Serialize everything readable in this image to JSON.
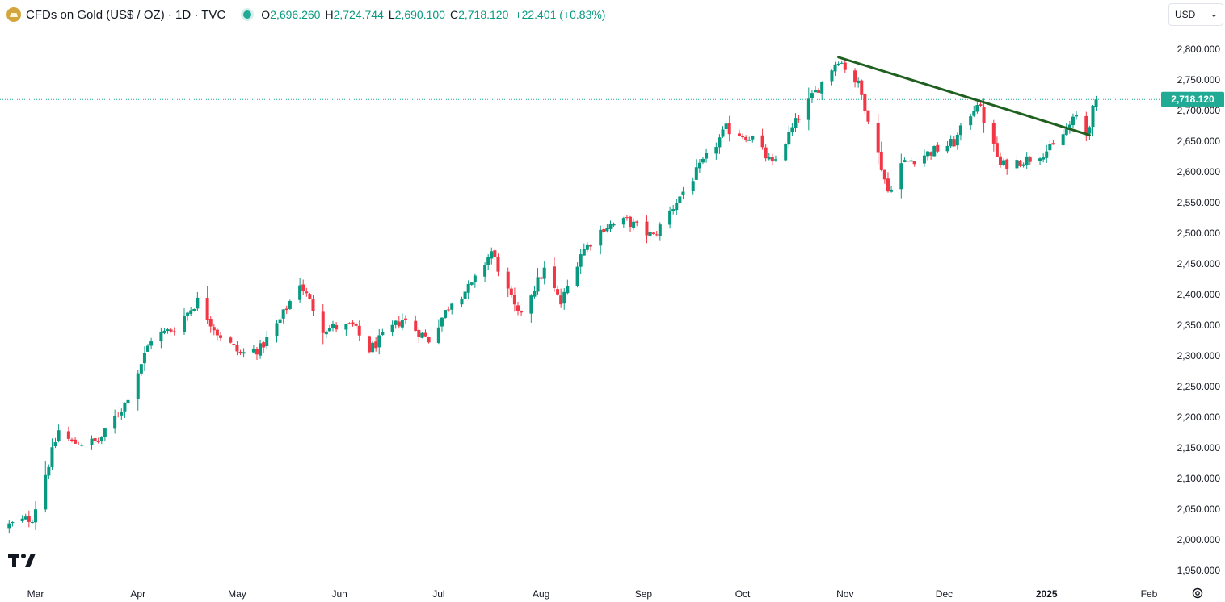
{
  "header": {
    "symbol_title": "CFDs on Gold (US$ / OZ) · 1D · TVC",
    "open_label": "O",
    "open_value": "2,696.260",
    "high_label": "H",
    "high_value": "2,724.744",
    "low_label": "L",
    "low_value": "2,690.100",
    "close_label": "C",
    "close_value": "2,718.120",
    "change": "+22.401 (+0.83%)",
    "market_status_color": "#22ab94"
  },
  "currency_selector": {
    "value": "USD"
  },
  "last_price_label": "2,718.120",
  "colors": {
    "up": "#089981",
    "down": "#f23645",
    "trendline": "#1f5f1f",
    "price_line": "#22ab94"
  },
  "icons": {
    "logo": "tradingview-logo",
    "settings": "settings-icon",
    "symbol": "gold-icon",
    "dropdown": "chevron-down-icon"
  },
  "chart_data": {
    "type": "candlestick",
    "title": "CFDs on Gold (US$ / OZ) · 1D · TVC",
    "ylim": [
      1950,
      2800
    ],
    "y_ticks": [
      "2,800.000",
      "2,750.000",
      "2,700.000",
      "2,650.000",
      "2,600.000",
      "2,550.000",
      "2,500.000",
      "2,450.000",
      "2,400.000",
      "2,350.000",
      "2,300.000",
      "2,250.000",
      "2,200.000",
      "2,150.000",
      "2,100.000",
      "2,050.000",
      "2,000.000",
      "1,950.000"
    ],
    "y_tick_values": [
      2800,
      2750,
      2700,
      2650,
      2600,
      2550,
      2500,
      2450,
      2400,
      2350,
      2300,
      2250,
      2200,
      2150,
      2100,
      2050,
      2000,
      1950
    ],
    "x_ticks": [
      "Mar",
      "Apr",
      "May",
      "Jun",
      "Jul",
      "Aug",
      "Sep",
      "Oct",
      "Nov",
      "Dec",
      "2025",
      "Feb"
    ],
    "x_tick_dates": [
      "2024-03-01",
      "2024-04-01",
      "2024-05-01",
      "2024-06-01",
      "2024-07-01",
      "2024-08-01",
      "2024-09-01",
      "2024-10-01",
      "2024-11-01",
      "2024-12-01",
      "2025-01-01",
      "2025-02-01"
    ],
    "x_range": [
      "2024-02-22",
      "2025-02-15"
    ],
    "last_price": 2718.12,
    "waypoints": [
      [
        "2024-02-22",
        2024
      ],
      [
        "2024-02-29",
        2036
      ],
      [
        "2024-03-08",
        2178
      ],
      [
        "2024-03-12",
        2158
      ],
      [
        "2024-03-20",
        2160
      ],
      [
        "2024-03-28",
        2222
      ],
      [
        "2024-04-05",
        2328
      ],
      [
        "2024-04-12",
        2345
      ],
      [
        "2024-04-19",
        2390
      ],
      [
        "2024-04-25",
        2338
      ],
      [
        "2024-05-02",
        2303
      ],
      [
        "2024-05-08",
        2312
      ],
      [
        "2024-05-14",
        2358
      ],
      [
        "2024-05-20",
        2420
      ],
      [
        "2024-05-27",
        2345
      ],
      [
        "2024-06-05",
        2348
      ],
      [
        "2024-06-10",
        2310
      ],
      [
        "2024-06-20",
        2360
      ],
      [
        "2024-06-28",
        2326
      ],
      [
        "2024-07-05",
        2390
      ],
      [
        "2024-07-11",
        2414
      ],
      [
        "2024-07-17",
        2470
      ],
      [
        "2024-07-25",
        2365
      ],
      [
        "2024-08-02",
        2440
      ],
      [
        "2024-08-07",
        2385
      ],
      [
        "2024-08-13",
        2468
      ],
      [
        "2024-08-20",
        2510
      ],
      [
        "2024-08-27",
        2520
      ],
      [
        "2024-09-04",
        2494
      ],
      [
        "2024-09-12",
        2560
      ],
      [
        "2024-09-20",
        2622
      ],
      [
        "2024-09-26",
        2670
      ],
      [
        "2024-10-04",
        2655
      ],
      [
        "2024-10-10",
        2610
      ],
      [
        "2024-10-18",
        2690
      ],
      [
        "2024-10-24",
        2738
      ],
      [
        "2024-10-30",
        2785
      ],
      [
        "2024-11-05",
        2742
      ],
      [
        "2024-11-08",
        2690
      ],
      [
        "2024-11-14",
        2568
      ],
      [
        "2024-11-18",
        2613
      ],
      [
        "2024-11-25",
        2628
      ],
      [
        "2024-12-04",
        2648
      ],
      [
        "2024-12-11",
        2715
      ],
      [
        "2024-12-18",
        2610
      ],
      [
        "2024-12-27",
        2622
      ],
      [
        "2025-01-03",
        2640
      ],
      [
        "2025-01-10",
        2690
      ],
      [
        "2025-01-13",
        2663
      ],
      [
        "2025-01-16",
        2718.12
      ]
    ],
    "trendline": [
      [
        "2024-10-30",
        2787
      ],
      [
        "2025-01-14",
        2660
      ]
    ]
  }
}
